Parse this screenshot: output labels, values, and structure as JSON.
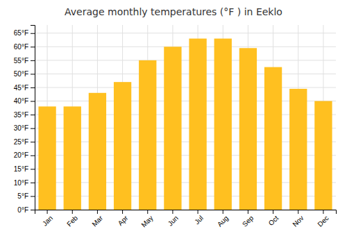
{
  "chart_data": {
    "type": "bar",
    "title": "Average monthly temperatures (°F ) in Eeklo",
    "categories": [
      "Jan",
      "Feb",
      "Mar",
      "Apr",
      "May",
      "Jun",
      "Jul",
      "Aug",
      "Sep",
      "Oct",
      "Nov",
      "Dec"
    ],
    "values": [
      38,
      38,
      43,
      47,
      55,
      60,
      63,
      63,
      59.5,
      52.5,
      44.5,
      40
    ],
    "color": "#FFC020",
    "ylim": [
      0,
      68
    ],
    "yticks": [
      {
        "value": 0,
        "label": "0°F"
      },
      {
        "value": 5,
        "label": "5°F"
      },
      {
        "value": 10,
        "label": "10°F"
      },
      {
        "value": 15,
        "label": "15°F"
      },
      {
        "value": 20,
        "label": "20°F"
      },
      {
        "value": 25,
        "label": "25°F"
      },
      {
        "value": 30,
        "label": "30°F"
      },
      {
        "value": 35,
        "label": "35°F"
      },
      {
        "value": 40,
        "label": "40°F"
      },
      {
        "value": 45,
        "label": "45°F"
      },
      {
        "value": 50,
        "label": "50°F"
      },
      {
        "value": 55,
        "label": "55°F"
      },
      {
        "value": 60,
        "label": "60°F"
      },
      {
        "value": 65,
        "label": "65°F"
      }
    ],
    "grid": true
  }
}
